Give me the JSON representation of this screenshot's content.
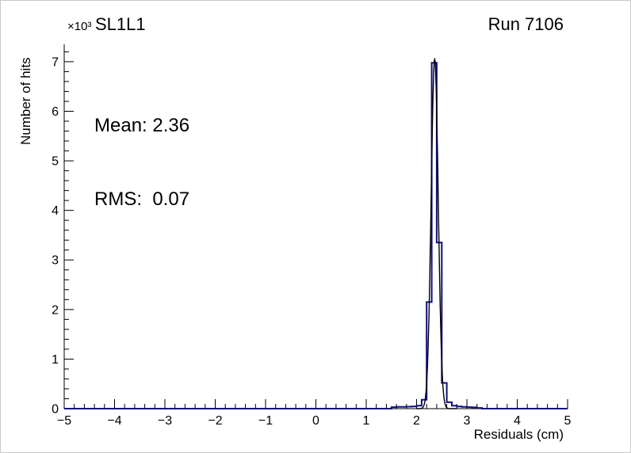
{
  "header": {
    "scale_label": "×10³",
    "title": "SL1L1",
    "run_label": "Run 7106"
  },
  "stats": {
    "mean": "Mean: 2.36",
    "rms": "RMS:  0.07"
  },
  "axes": {
    "x_title": "Residuals (cm)",
    "y_title": "Number of hits"
  },
  "chart_data": {
    "type": "bar",
    "subtype": "step-histogram",
    "title": "SL1L1",
    "run": "Run 7106",
    "xlabel": "Residuals (cm)",
    "ylabel": "Number of hits",
    "y_scale_label": "×10³",
    "xlim": [
      -5,
      5
    ],
    "ylim": [
      0,
      7350
    ],
    "grid": false,
    "x_major_ticks": [
      -5,
      -4,
      -3,
      -2,
      -1,
      0,
      1,
      2,
      3,
      4,
      5
    ],
    "x_tick_labels": [
      "−5",
      "−4",
      "−3",
      "−2",
      "−1",
      "0",
      "1",
      "2",
      "3",
      "4",
      "5"
    ],
    "x_minor_step": 0.2,
    "y_major_ticks": [
      0,
      1000,
      2000,
      3000,
      4000,
      5000,
      6000,
      7000
    ],
    "y_tick_labels": [
      "0",
      "1",
      "2",
      "3",
      "4",
      "5",
      "6",
      "7"
    ],
    "y_minor_step": 200,
    "histogram": {
      "bin_start": 1.5,
      "bin_width": 0.1,
      "counts": [
        30,
        35,
        35,
        40,
        45,
        60,
        180,
        2150,
        6980,
        3350,
        520,
        130,
        60,
        45,
        35,
        30,
        25,
        15
      ]
    },
    "fit": {
      "type": "gaussian",
      "mean": 2.36,
      "sigma": 0.07,
      "amplitude": 7050,
      "range": [
        2.0,
        2.8
      ]
    },
    "annotations": [
      "Mean: 2.36",
      "RMS:  0.07"
    ],
    "colors": {
      "histogram": "#10107e",
      "fit": "#000000",
      "axis": "#000000",
      "text": "#000000",
      "background": "#ffffff"
    }
  }
}
